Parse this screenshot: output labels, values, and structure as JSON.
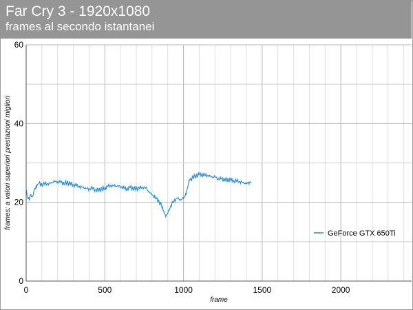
{
  "header": {
    "title": "Far Cry 3 - 1920x1080",
    "subtitle": "frames al secondo istantanei"
  },
  "colors": {
    "header_bg": "#959595",
    "series": "#1e88e5",
    "grid": "#c8c8c8"
  },
  "chart_data": {
    "type": "line",
    "title": "Far Cry 3 - 1920x1080",
    "subtitle": "frames al secondo istantanei",
    "xlabel": "frame",
    "ylabel": "frames: a valori superiori prestazioni migliori",
    "xlim": [
      0,
      2450
    ],
    "ylim": [
      0,
      60
    ],
    "x_ticks": [
      0,
      500,
      1000,
      1500,
      2000
    ],
    "y_ticks": [
      0,
      20,
      40,
      60
    ],
    "grid": true,
    "legend_position": "right",
    "series": [
      {
        "name": "GeForce GTX 650Ti",
        "color": "#1e88e5",
        "x": [
          0,
          10,
          20,
          30,
          40,
          50,
          60,
          70,
          80,
          100,
          120,
          140,
          160,
          180,
          200,
          220,
          240,
          260,
          280,
          300,
          320,
          340,
          360,
          380,
          400,
          420,
          440,
          460,
          480,
          500,
          520,
          540,
          560,
          580,
          600,
          620,
          640,
          660,
          680,
          700,
          720,
          740,
          760,
          780,
          800,
          820,
          840,
          860,
          870,
          880,
          890,
          900,
          910,
          920,
          940,
          960,
          980,
          1000,
          1010,
          1020,
          1030,
          1040,
          1060,
          1080,
          1100,
          1120,
          1140,
          1160,
          1180,
          1200,
          1220,
          1240,
          1260,
          1280,
          1300,
          1320,
          1340,
          1360,
          1380,
          1400,
          1420,
          1430
        ],
        "y": [
          23.5,
          21.0,
          20.5,
          22.0,
          21.5,
          23.0,
          23.5,
          24.5,
          24.8,
          24.5,
          24.8,
          24.6,
          25.0,
          25.2,
          25.3,
          25.0,
          24.8,
          25.0,
          24.7,
          24.5,
          24.2,
          24.0,
          23.8,
          23.5,
          23.4,
          23.6,
          23.2,
          23.0,
          23.4,
          23.6,
          24.0,
          24.3,
          24.1,
          24.2,
          23.9,
          23.7,
          23.4,
          23.7,
          23.6,
          23.4,
          23.6,
          23.9,
          23.6,
          22.8,
          21.8,
          21.3,
          20.4,
          19.2,
          18.0,
          17.2,
          16.8,
          17.1,
          18.0,
          19.2,
          20.4,
          21.0,
          20.7,
          21.0,
          21.5,
          23.0,
          24.5,
          25.6,
          26.3,
          26.8,
          27.0,
          27.1,
          26.9,
          26.7,
          26.5,
          26.4,
          26.0,
          25.9,
          25.8,
          25.7,
          25.6,
          25.5,
          25.4,
          25.2,
          25.0,
          24.7,
          25.1,
          25.2
        ]
      }
    ]
  }
}
